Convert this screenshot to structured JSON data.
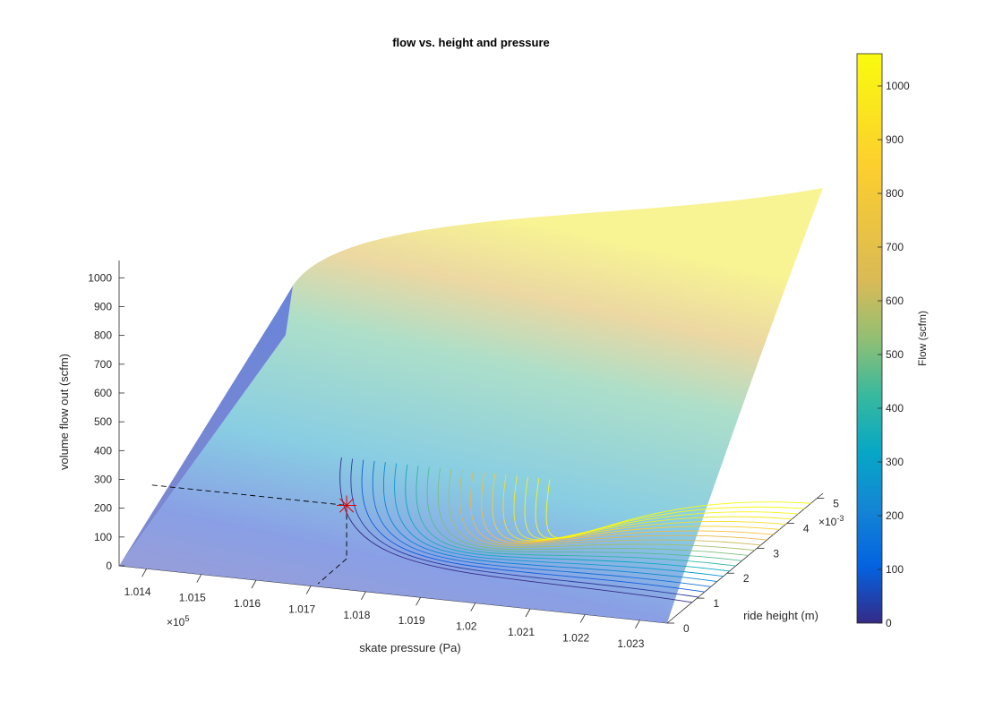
{
  "chart_data": {
    "type": "surface",
    "title": "flow vs. height and pressure",
    "xlabel": "skate pressure (Pa)",
    "ylabel": "ride height (m)",
    "zlabel": "volume flow out (scfm)",
    "x_exponent": "×10^5",
    "y_exponent": "×10^-3",
    "xlim": [
      101350,
      102350
    ],
    "ylim": [
      0,
      0.0052
    ],
    "zlim": [
      0,
      1060
    ],
    "x_ticks": [
      "1.014",
      "1.015",
      "1.016",
      "1.017",
      "1.018",
      "1.019",
      "1.02",
      "1.021",
      "1.022",
      "1.023"
    ],
    "y_ticks": [
      "0",
      "1",
      "2",
      "3",
      "4",
      "5"
    ],
    "z_ticks": [
      "0",
      "100",
      "200",
      "300",
      "400",
      "500",
      "600",
      "700",
      "800",
      "900",
      "1000"
    ],
    "surface_samples": [
      {
        "pressure": 101350,
        "height": 0,
        "flow": 0
      },
      {
        "pressure": 102350,
        "height": 0,
        "flow": 0
      },
      {
        "pressure": 101350,
        "height": 0.0052,
        "flow": 640
      },
      {
        "pressure": 102350,
        "height": 0.0052,
        "flow": 1060
      }
    ],
    "contour_levels": [
      50,
      100,
      150,
      200,
      250,
      300,
      350,
      400,
      450,
      500,
      550,
      600,
      650,
      700,
      750,
      800,
      850,
      900,
      950,
      1000
    ],
    "marker": {
      "pressure": 101705,
      "height": 0.0011,
      "flow": 185
    },
    "colorbar": {
      "label": "Flow (scfm)",
      "range": [
        0,
        1060
      ],
      "ticks": [
        "0",
        "100",
        "200",
        "300",
        "400",
        "500",
        "600",
        "700",
        "800",
        "900",
        "1000"
      ],
      "colormap": "parula"
    }
  }
}
